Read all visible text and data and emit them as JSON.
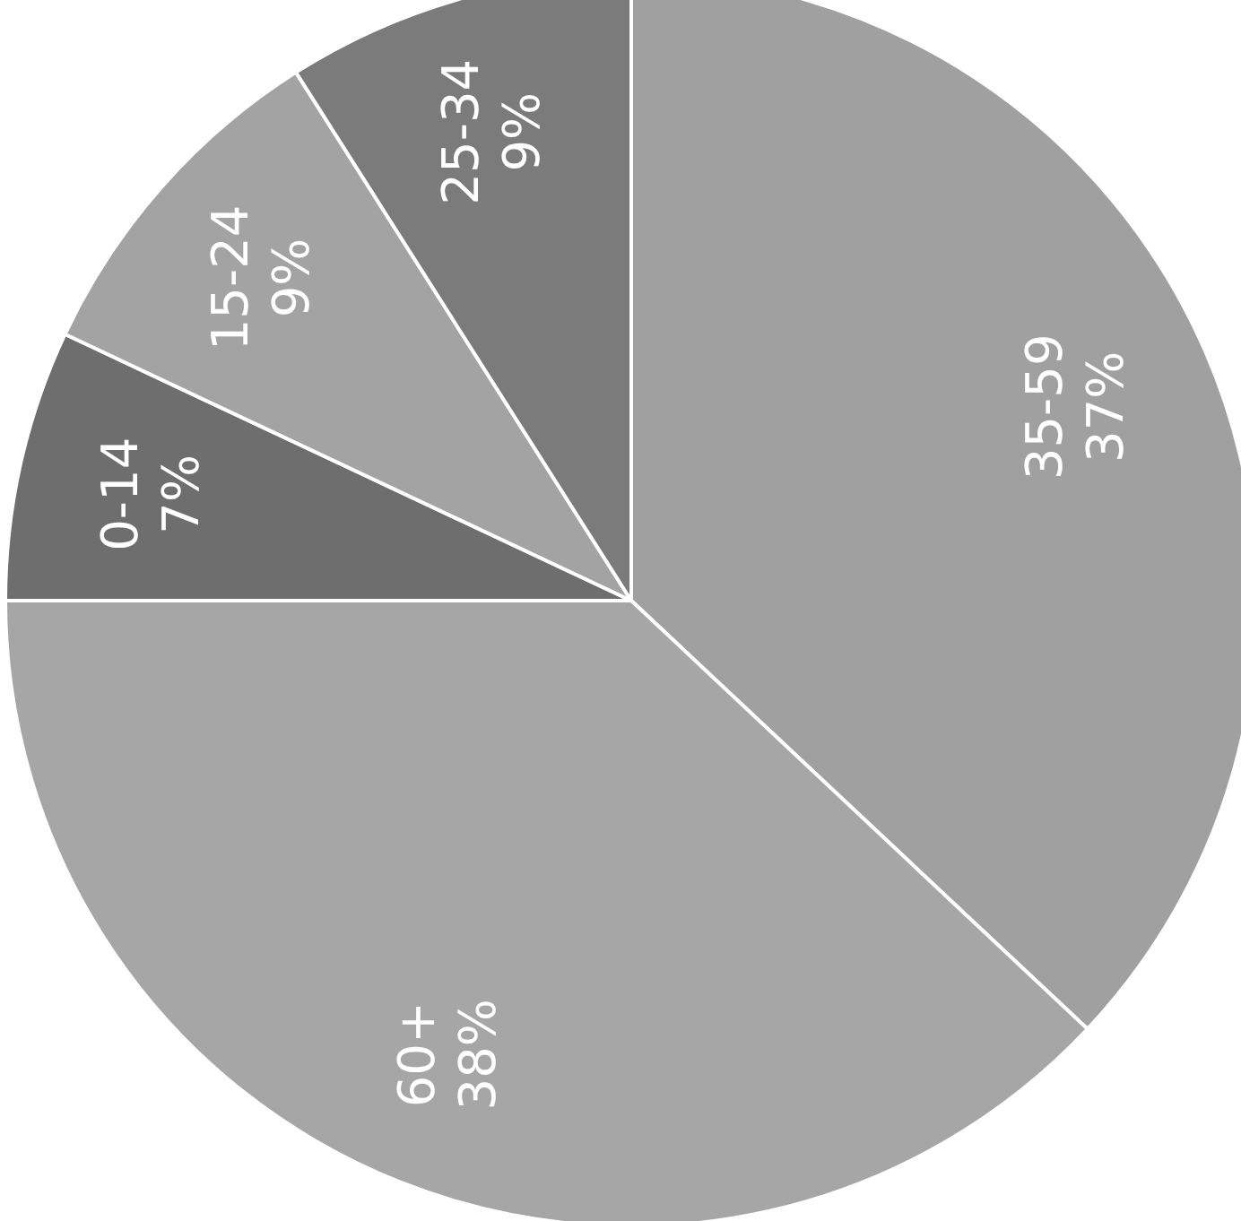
{
  "chart_data": {
    "type": "pie",
    "categories": [
      "0-14",
      "15-24",
      "25-34",
      "35-59",
      "60+"
    ],
    "values": [
      7,
      9,
      9,
      37,
      38
    ],
    "value_labels": [
      "7%",
      "9%",
      "9%",
      "37%",
      "38%"
    ],
    "colors": [
      "#6e6e6e",
      "#a3a3a3",
      "#7b7b7b",
      "#a0a0a0",
      "#a6a6a6"
    ],
    "legend": false
  }
}
